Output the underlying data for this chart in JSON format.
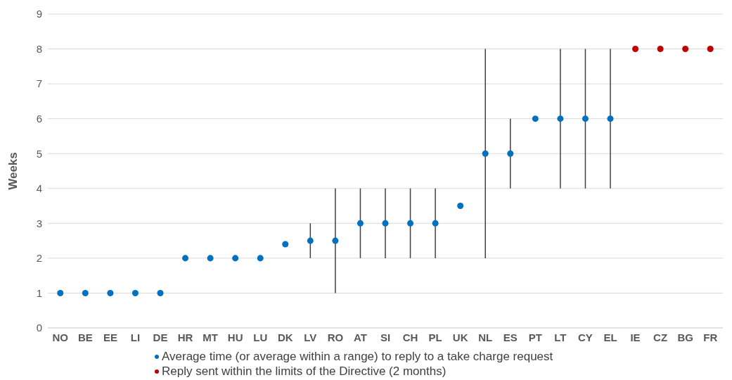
{
  "chart_data": {
    "type": "scatter",
    "ylabel": "Weeks",
    "categories": [
      "NO",
      "BE",
      "EE",
      "LI",
      "DE",
      "HR",
      "MT",
      "HU",
      "LU",
      "DK",
      "LV",
      "RO",
      "AT",
      "SI",
      "CH",
      "PL",
      "UK",
      "NL",
      "ES",
      "PT",
      "LT",
      "CY",
      "EL",
      "IE",
      "CZ",
      "BG",
      "FR"
    ],
    "series": [
      {
        "name": "Average time (or average within a range) to reply to a take charge request",
        "color": "#0070c0",
        "values": [
          1,
          1,
          1,
          1,
          1,
          2,
          2,
          2,
          2,
          2.4,
          2.5,
          2.5,
          3,
          3,
          3,
          3,
          3.5,
          5,
          5,
          6,
          6,
          6,
          6,
          null,
          null,
          null,
          null
        ],
        "errors": [
          null,
          null,
          null,
          null,
          null,
          null,
          null,
          null,
          null,
          null,
          [
            2,
            3
          ],
          [
            1,
            4
          ],
          [
            2,
            4
          ],
          [
            2,
            4
          ],
          [
            2,
            4
          ],
          [
            2,
            4
          ],
          null,
          [
            2,
            8
          ],
          [
            4,
            6
          ],
          null,
          [
            4,
            8
          ],
          [
            4,
            8
          ],
          [
            4,
            8
          ],
          null,
          null,
          null,
          null
        ]
      },
      {
        "name": "Reply sent within the limits of the Directive (2 months)",
        "color": "#c00000",
        "values": [
          null,
          null,
          null,
          null,
          null,
          null,
          null,
          null,
          null,
          null,
          null,
          null,
          null,
          null,
          null,
          null,
          null,
          null,
          null,
          null,
          null,
          null,
          null,
          8,
          8,
          8,
          8
        ]
      }
    ],
    "ylim": [
      0,
      9
    ],
    "yticks": [
      0,
      1,
      2,
      3,
      4,
      5,
      6,
      7,
      8,
      9
    ],
    "grid": "y",
    "legend": "bottom",
    "marker": "circle"
  }
}
